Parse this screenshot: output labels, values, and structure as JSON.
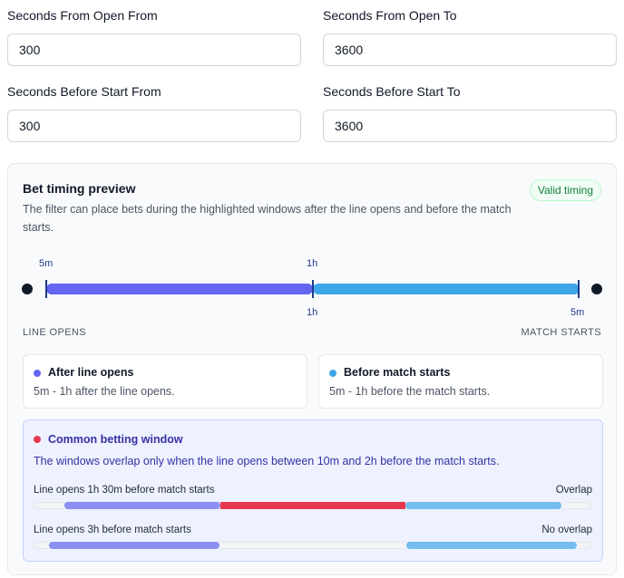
{
  "fields": {
    "open_from": {
      "label": "Seconds From Open From",
      "value": "300"
    },
    "open_to": {
      "label": "Seconds From Open To",
      "value": "3600"
    },
    "before_from": {
      "label": "Seconds Before Start From",
      "value": "300"
    },
    "before_to": {
      "label": "Seconds Before Start To",
      "value": "3600"
    }
  },
  "preview": {
    "title": "Bet timing preview",
    "badge": "Valid timing",
    "description": "The filter can place bets during the highlighted windows after the line opens and before the match starts.",
    "timeline": {
      "top_left_tick": "5m",
      "top_mid_tick": "1h",
      "bottom_mid_tick": "1h",
      "bottom_right_tick": "5m",
      "start_caption": "LINE OPENS",
      "end_caption": "MATCH STARTS"
    },
    "after_card": {
      "title": "After line opens",
      "text": "5m - 1h after the line opens."
    },
    "before_card": {
      "title": "Before match starts",
      "text": "5m - 1h before the match starts."
    },
    "common": {
      "title": "Common betting window",
      "text": "The windows overlap only when the line opens between 10m and 2h before the match starts.",
      "scenarios": [
        {
          "label": "Line opens 1h 30m before match starts",
          "result": "Overlap"
        },
        {
          "label": "Line opens 3h before match starts",
          "result": "No overlap"
        }
      ]
    }
  },
  "colors": {
    "after": "#6366f1",
    "before": "#3ea6e8",
    "overlap": "#e63950",
    "valid": "#15803d"
  }
}
